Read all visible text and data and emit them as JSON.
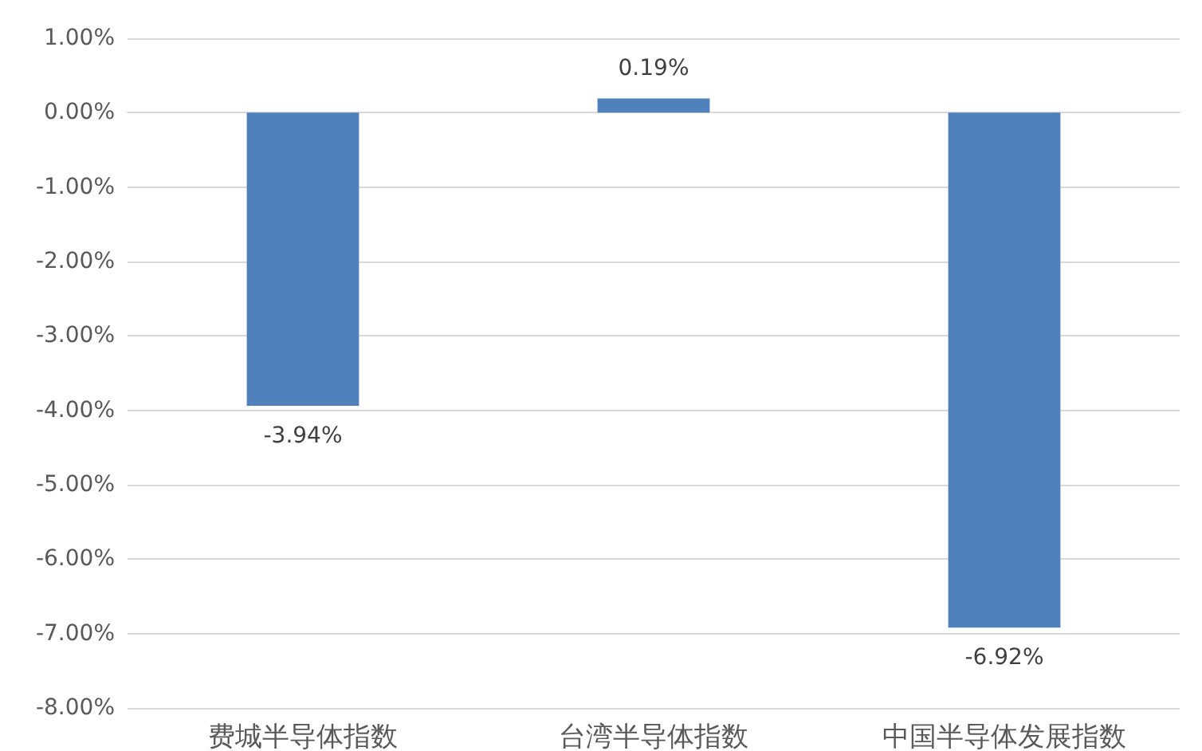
{
  "chart_data": {
    "type": "bar",
    "categories": [
      "费城半导体指数",
      "台湾半导体指数",
      "中国半导体发展指数"
    ],
    "values": [
      -3.94,
      0.19,
      -6.92
    ],
    "value_labels": [
      "-3.94%",
      "0.19%",
      "-6.92%"
    ],
    "color": "#4f81bd",
    "ylim": [
      -8,
      1
    ],
    "yticks": [
      {
        "value": 1,
        "label": "1.00%"
      },
      {
        "value": 0,
        "label": "0.00%"
      },
      {
        "value": -1,
        "label": "-1.00%"
      },
      {
        "value": -2,
        "label": "-2.00%"
      },
      {
        "value": -3,
        "label": "-3.00%"
      },
      {
        "value": -4,
        "label": "-4.00%"
      },
      {
        "value": -5,
        "label": "-5.00%"
      },
      {
        "value": -6,
        "label": "-6.00%"
      },
      {
        "value": -7,
        "label": "-7.00%"
      },
      {
        "value": -8,
        "label": "-8.00%"
      }
    ],
    "grid": "y"
  }
}
